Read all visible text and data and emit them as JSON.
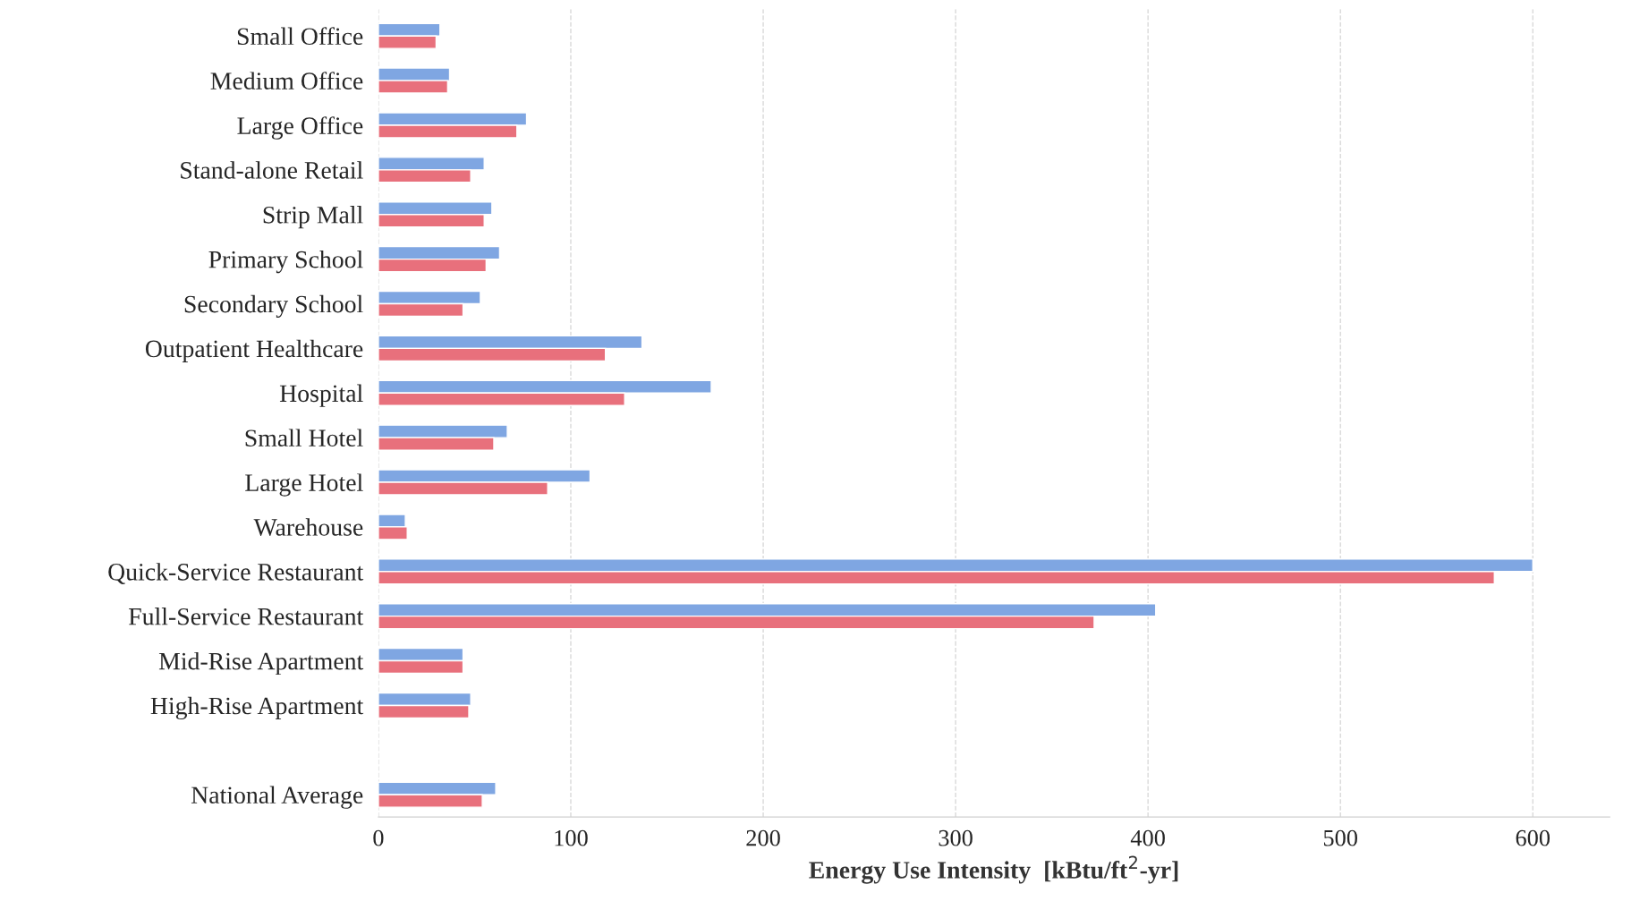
{
  "chart_data": {
    "type": "bar",
    "orientation": "horizontal",
    "xlabel": "Energy Use Intensity  [kBtu/ft$^{2}$-yr]",
    "categories": [
      "Small Office",
      "Medium Office",
      "Large Office",
      "Stand-alone Retail",
      "Strip Mall",
      "Primary School",
      "Secondary School",
      "Outpatient Healthcare",
      "Hospital",
      "Small Hotel",
      "Large Hotel",
      "Warehouse",
      "Quick-Service Restaurant",
      "Full-Service Restaurant",
      "Mid-Rise Apartment",
      "High-Rise Apartment",
      null,
      "National Average"
    ],
    "series": [
      {
        "color": "#7fa6e2",
        "values": [
          32,
          37,
          77,
          55,
          59,
          63,
          53,
          137,
          173,
          67,
          110,
          14,
          600,
          404,
          44,
          48,
          null,
          61
        ]
      },
      {
        "color": "#e8707c",
        "values": [
          30,
          36,
          72,
          48,
          55,
          56,
          44,
          118,
          128,
          60,
          88,
          15,
          580,
          372,
          44,
          47,
          null,
          54
        ]
      }
    ],
    "xlim": [
      0,
      640
    ],
    "xticks": [
      0,
      100,
      200,
      300,
      400,
      500,
      600
    ],
    "grid": "x",
    "legend": false
  }
}
